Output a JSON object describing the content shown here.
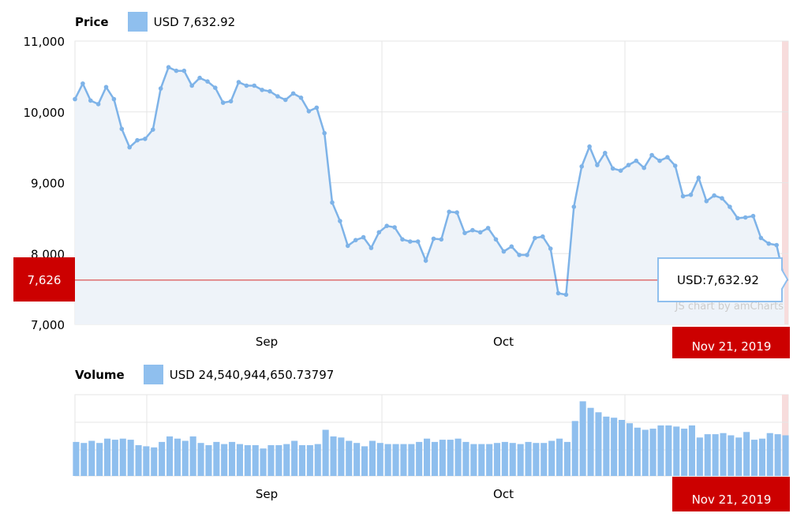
{
  "price_panel": {
    "title": "Price",
    "legend_value": "USD 7,632.92",
    "cursor_value": "7,626",
    "tooltip": "USD:7,632.92",
    "credit": "JS chart by amCharts",
    "date_label": "Nov 21, 2019"
  },
  "volume_panel": {
    "title": "Volume",
    "legend_value": "USD 24,540,944,650.73797",
    "date_label": "Nov 21, 2019"
  },
  "colors": {
    "series": "#8fbfee",
    "line": "#7eb3e8",
    "fill": "#eef3f9",
    "cursor": "#d62b2b",
    "label_bg": "#cc0000",
    "grid": "#e6e6e6"
  },
  "chart_data": [
    {
      "type": "line",
      "title": "Price",
      "y_ticks": [
        "11,000",
        "10,000",
        "9,000",
        "8,000",
        "7,000"
      ],
      "ylim": [
        7000,
        11000
      ],
      "x_ticks": [
        "Sep",
        "Oct"
      ],
      "series": [
        {
          "name": "Price",
          "values": [
            10180,
            10400,
            10160,
            10110,
            10350,
            10180,
            9760,
            9500,
            9600,
            9620,
            9750,
            10330,
            10630,
            10580,
            10580,
            10370,
            10480,
            10430,
            10340,
            10130,
            10150,
            10420,
            10370,
            10370,
            10310,
            10290,
            10220,
            10170,
            10260,
            10200,
            10010,
            10060,
            9700,
            8720,
            8460,
            8110,
            8190,
            8230,
            8080,
            8300,
            8390,
            8370,
            8200,
            8170,
            8170,
            7900,
            8210,
            8200,
            8590,
            8580,
            8290,
            8330,
            8300,
            8360,
            8200,
            8030,
            8100,
            7980,
            7980,
            8220,
            8240,
            8070,
            7440,
            7420,
            8660,
            9230,
            9510,
            9250,
            9420,
            9200,
            9170,
            9250,
            9310,
            9210,
            9390,
            9310,
            9360,
            9240,
            8810,
            8830,
            9070,
            8740,
            8820,
            8780,
            8660,
            8500,
            8510,
            8530,
            8220,
            8140,
            8120,
            7630
          ]
        }
      ],
      "cursor_value": 7626
    },
    {
      "type": "bar",
      "title": "Volume",
      "x_ticks": [
        "Sep",
        "Oct"
      ],
      "series": [
        {
          "name": "Volume",
          "values": [
            15.5,
            15,
            16,
            15,
            17,
            16.5,
            17,
            16.5,
            14,
            13.5,
            13,
            15.5,
            18,
            17,
            16,
            18,
            15,
            14,
            15.5,
            14.5,
            15.5,
            14.5,
            14,
            14,
            12.5,
            14,
            14,
            14.5,
            16,
            14,
            14,
            14.5,
            21,
            18,
            17.5,
            16,
            15,
            13.5,
            16,
            15,
            14.5,
            14.5,
            14.5,
            14.5,
            15.5,
            17,
            15.5,
            16.5,
            16.5,
            17,
            15.5,
            14.5,
            14.5,
            14.5,
            15,
            15.5,
            15,
            14.5,
            15.5,
            15,
            15,
            16,
            17,
            15.5,
            25,
            34,
            31,
            29,
            27,
            26.5,
            25.5,
            24,
            22,
            21,
            21.5,
            23,
            23,
            22.5,
            21.5,
            23,
            17.5,
            19,
            19,
            19.5,
            18.5,
            17.5,
            20,
            16.5,
            17,
            19.5,
            19,
            18.5
          ]
        }
      ]
    }
  ]
}
